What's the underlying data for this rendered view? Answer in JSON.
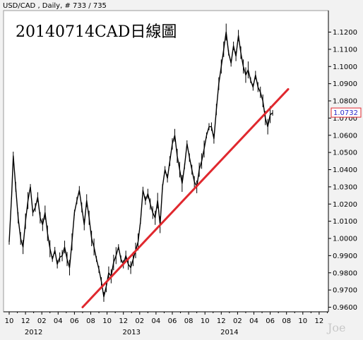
{
  "header": {
    "symbol_info": "USD/CAD , Daily, # 733 / 735"
  },
  "watermark": "Joe",
  "chart_data": {
    "type": "line",
    "title": "20140714CAD日線圖",
    "xlabel": "",
    "ylabel": "",
    "ylim": [
      0.96,
      1.12
    ],
    "y_ticks": [
      "0.9600",
      "0.9700",
      "0.9800",
      "0.9900",
      "1.0000",
      "1.0100",
      "1.0200",
      "1.0300",
      "1.0400",
      "1.0500",
      "1.0600",
      "1.0700",
      "1.0800",
      "1.0900",
      "1.1000",
      "1.1100",
      "1.1200"
    ],
    "x_month_ticks": [
      "10",
      "12",
      "02",
      "04",
      "06",
      "08",
      "10",
      "12",
      "02",
      "04",
      "06",
      "08",
      "10",
      "12",
      "02",
      "04",
      "06",
      "08",
      "10",
      "12"
    ],
    "x_year_labels": [
      {
        "label": "2012",
        "month_index": 3
      },
      {
        "label": "2013",
        "month_index": 15
      },
      {
        "label": "2014",
        "month_index": 27
      }
    ],
    "current_value": "1.0732",
    "series": [
      {
        "type": "line",
        "color": "#000000",
        "points": [
          [
            0.0,
            0.998
          ],
          [
            0.3,
            1.025
          ],
          [
            0.5,
            1.048
          ],
          [
            0.8,
            1.03
          ],
          [
            1.1,
            1.012
          ],
          [
            1.4,
            1.0
          ],
          [
            1.7,
            0.995
          ],
          [
            2.0,
            1.01
          ],
          [
            2.3,
            1.022
          ],
          [
            2.6,
            1.03
          ],
          [
            2.9,
            1.015
          ],
          [
            3.2,
            1.018
          ],
          [
            3.5,
            1.024
          ],
          [
            3.8,
            1.012
          ],
          [
            4.1,
            1.008
          ],
          [
            4.4,
            1.015
          ],
          [
            4.7,
            1.003
          ],
          [
            5.0,
            0.994
          ],
          [
            5.3,
            0.988
          ],
          [
            5.6,
            0.993
          ],
          [
            5.9,
            0.985
          ],
          [
            6.2,
            0.989
          ],
          [
            6.5,
            0.99
          ],
          [
            6.8,
            0.995
          ],
          [
            7.1,
            0.988
          ],
          [
            7.4,
            0.983
          ],
          [
            7.7,
            0.998
          ],
          [
            8.0,
            1.015
          ],
          [
            8.3,
            1.022
          ],
          [
            8.6,
            1.028
          ],
          [
            8.9,
            1.018
          ],
          [
            9.2,
            1.008
          ],
          [
            9.5,
            1.022
          ],
          [
            9.8,
            1.012
          ],
          [
            10.1,
            1.0
          ],
          [
            10.4,
            0.995
          ],
          [
            10.7,
            0.988
          ],
          [
            11.0,
            0.982
          ],
          [
            11.3,
            0.975
          ],
          [
            11.6,
            0.966
          ],
          [
            11.9,
            0.972
          ],
          [
            12.2,
            0.98
          ],
          [
            12.5,
            0.978
          ],
          [
            12.8,
            0.986
          ],
          [
            13.1,
            0.99
          ],
          [
            13.4,
            0.995
          ],
          [
            13.7,
            0.988
          ],
          [
            14.0,
            0.985
          ],
          [
            14.3,
            0.99
          ],
          [
            14.6,
            0.985
          ],
          [
            14.9,
            0.983
          ],
          [
            15.2,
            0.988
          ],
          [
            15.5,
            0.993
          ],
          [
            15.8,
            0.998
          ],
          [
            16.1,
            1.01
          ],
          [
            16.4,
            1.028
          ],
          [
            16.7,
            1.022
          ],
          [
            17.0,
            1.026
          ],
          [
            17.3,
            1.02
          ],
          [
            17.6,
            1.015
          ],
          [
            17.9,
            1.012
          ],
          [
            18.2,
            1.022
          ],
          [
            18.5,
            1.008
          ],
          [
            18.8,
            1.03
          ],
          [
            19.1,
            1.04
          ],
          [
            19.4,
            1.035
          ],
          [
            19.7,
            1.045
          ],
          [
            20.0,
            1.055
          ],
          [
            20.3,
            1.06
          ],
          [
            20.6,
            1.048
          ],
          [
            20.9,
            1.04
          ],
          [
            21.2,
            1.032
          ],
          [
            21.5,
            1.042
          ],
          [
            21.8,
            1.055
          ],
          [
            22.1,
            1.047
          ],
          [
            22.4,
            1.04
          ],
          [
            22.7,
            1.033
          ],
          [
            23.0,
            1.03
          ],
          [
            23.3,
            1.04
          ],
          [
            23.6,
            1.045
          ],
          [
            23.9,
            1.052
          ],
          [
            24.2,
            1.06
          ],
          [
            24.5,
            1.065
          ],
          [
            24.8,
            1.065
          ],
          [
            25.1,
            1.058
          ],
          [
            25.4,
            1.075
          ],
          [
            25.7,
            1.09
          ],
          [
            26.0,
            1.1
          ],
          [
            26.3,
            1.11
          ],
          [
            26.6,
            1.12
          ],
          [
            26.9,
            1.108
          ],
          [
            27.2,
            1.102
          ],
          [
            27.5,
            1.112
          ],
          [
            27.8,
            1.106
          ],
          [
            28.1,
            1.118
          ],
          [
            28.4,
            1.108
          ],
          [
            28.7,
            1.1
          ],
          [
            29.0,
            1.095
          ],
          [
            29.3,
            1.098
          ],
          [
            29.6,
            1.092
          ],
          [
            29.9,
            1.088
          ],
          [
            30.2,
            1.095
          ],
          [
            30.5,
            1.088
          ],
          [
            30.8,
            1.085
          ],
          [
            31.1,
            1.08
          ],
          [
            31.4,
            1.07
          ],
          [
            31.7,
            1.065
          ],
          [
            32.0,
            1.072
          ],
          [
            32.3,
            1.073
          ]
        ]
      },
      {
        "type": "trendline",
        "color": "#e0282e",
        "points": [
          [
            9.0,
            0.96
          ],
          [
            34.2,
            1.0868
          ]
        ]
      }
    ],
    "grid": false
  }
}
